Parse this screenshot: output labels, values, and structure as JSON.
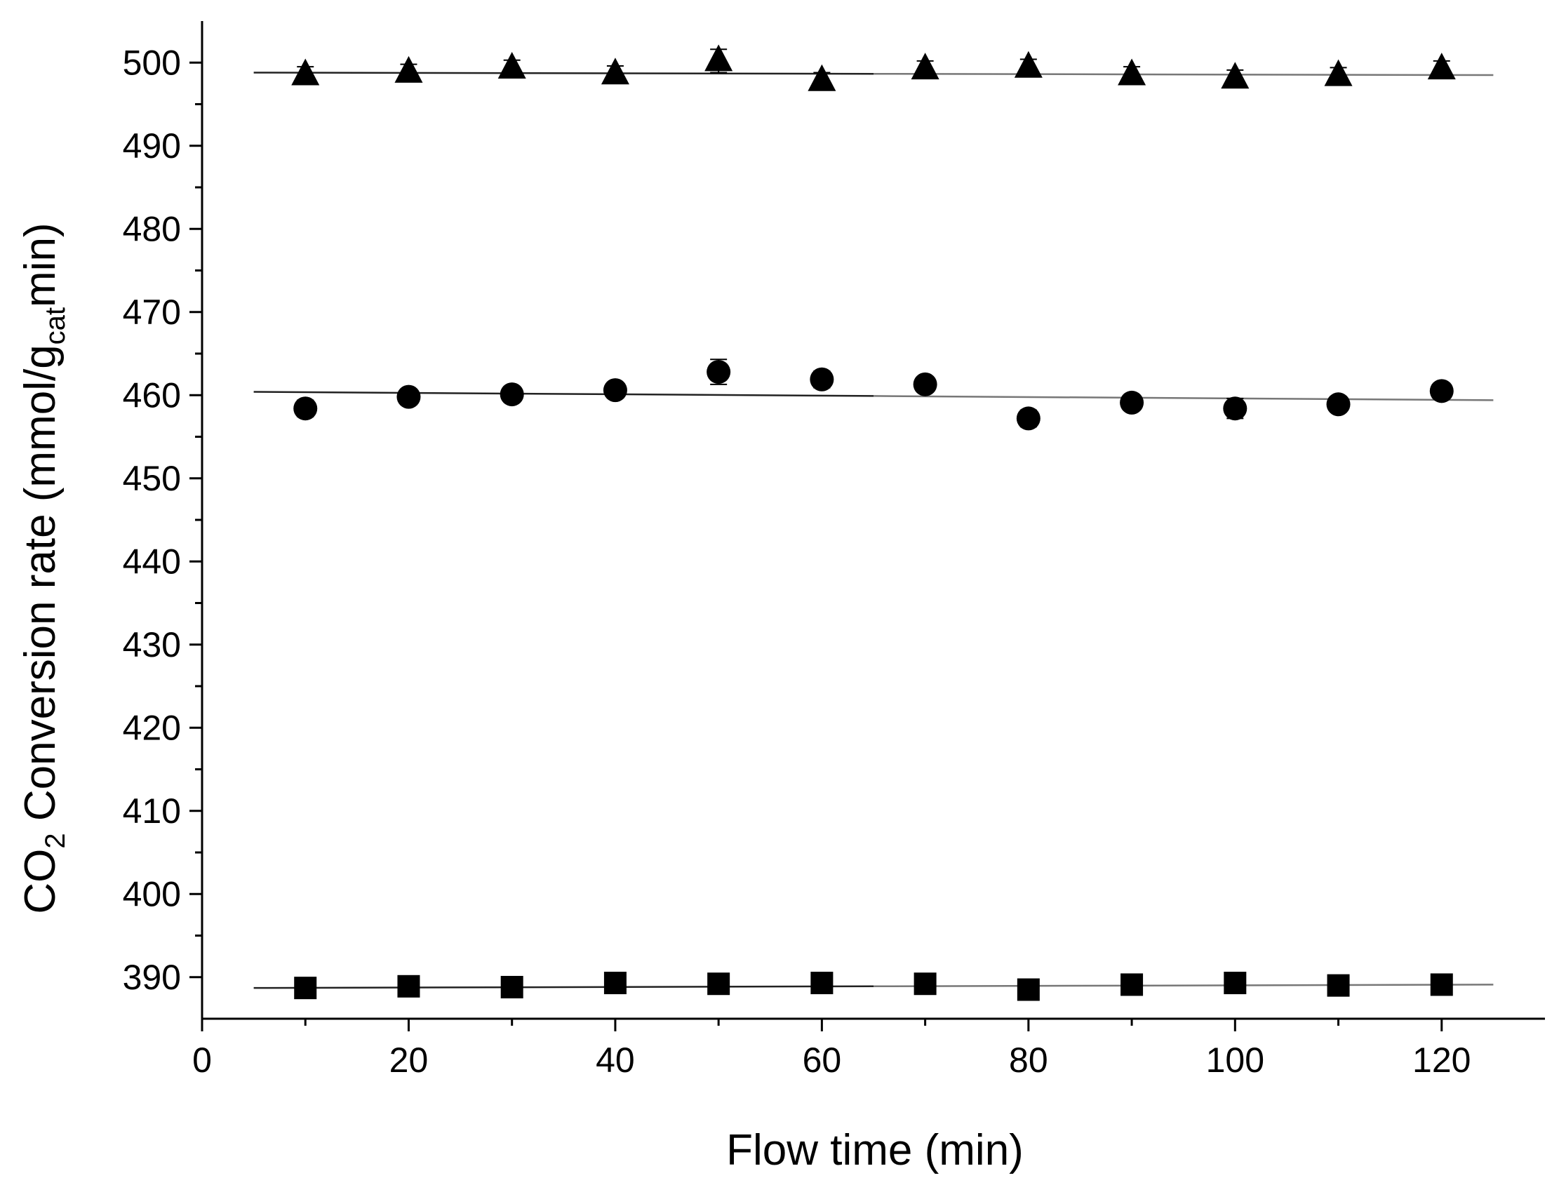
{
  "chart_data": {
    "type": "scatter",
    "title": "",
    "xlabel": "Flow time (min)",
    "ylabel": {
      "prefix": "CO",
      "sub1": "2",
      "middle": " Conversion rate (mmol/g",
      "sub2": "cat",
      "suffix": "min)"
    },
    "xlim": [
      0,
      130
    ],
    "ylim": [
      385,
      505
    ],
    "x_ticks": [
      0,
      20,
      40,
      60,
      80,
      100,
      120
    ],
    "y_ticks": [
      390,
      400,
      410,
      420,
      430,
      440,
      450,
      460,
      470,
      480,
      490,
      500
    ],
    "grid": false,
    "legend": "none",
    "x": [
      10,
      20,
      30,
      40,
      50,
      60,
      70,
      80,
      90,
      100,
      110,
      120
    ],
    "series": [
      {
        "marker": "triangle",
        "values": [
          498.5,
          498.8,
          499.3,
          498.6,
          500.2,
          497.8,
          499.2,
          499.4,
          498.5,
          498.1,
          498.4,
          499.2
        ],
        "errors": [
          1.0,
          1.0,
          1.0,
          1.0,
          1.4,
          1.0,
          1.0,
          1.0,
          1.0,
          1.0,
          1.0,
          1.0
        ],
        "fit": [
          [
            5,
            498.8
          ],
          [
            125,
            498.5
          ]
        ]
      },
      {
        "marker": "circle",
        "values": [
          458.4,
          459.8,
          460.1,
          460.6,
          462.8,
          461.9,
          461.3,
          457.2,
          459.1,
          458.4,
          458.9,
          460.5
        ],
        "errors": [
          1.0,
          0.8,
          0.6,
          0.6,
          1.5,
          1.0,
          0.8,
          1.0,
          0.8,
          1.2,
          0.8,
          0.8
        ],
        "fit": [
          [
            5,
            460.4
          ],
          [
            125,
            459.4
          ]
        ]
      },
      {
        "marker": "square",
        "values": [
          388.7,
          388.9,
          388.8,
          389.3,
          389.2,
          389.3,
          389.2,
          388.5,
          389.1,
          389.3,
          389.0,
          389.1
        ],
        "errors": [
          0.5,
          0.5,
          0.5,
          0.5,
          0.5,
          0.5,
          0.5,
          0.5,
          0.5,
          0.5,
          0.5,
          0.5
        ],
        "fit": [
          [
            5,
            388.7
          ],
          [
            125,
            389.1
          ]
        ]
      }
    ]
  }
}
